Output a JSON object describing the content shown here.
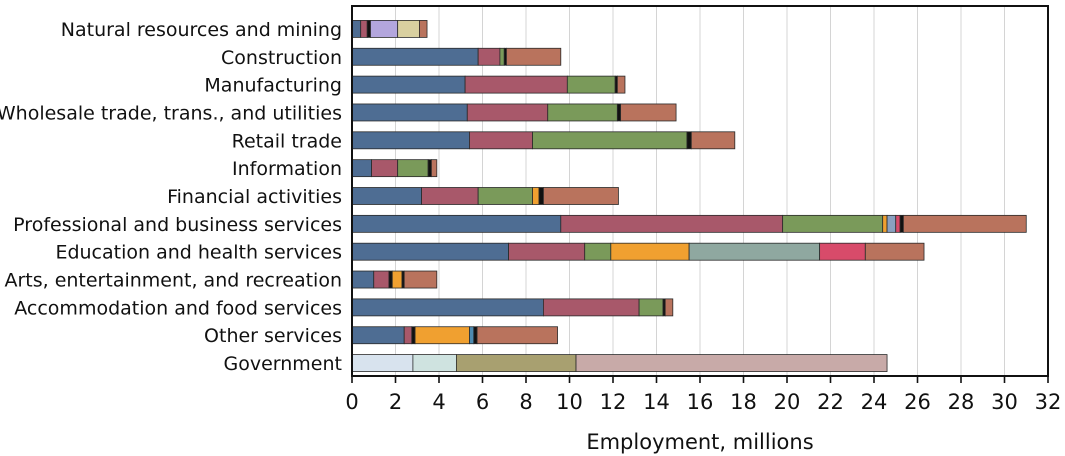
{
  "chart_data": {
    "type": "bar",
    "orientation": "horizontal",
    "stacked": true,
    "xlabel": "Employment, millions",
    "xlim": [
      0,
      32
    ],
    "xticks": [
      0,
      2,
      4,
      6,
      8,
      10,
      12,
      14,
      16,
      18,
      20,
      22,
      24,
      26,
      28,
      30,
      32
    ],
    "grid": true,
    "categories": [
      "Natural resources and mining",
      "Construction",
      "Manufacturing",
      "Wholesale trade, trans., and utilities",
      "Retail trade",
      "Information",
      "Financial activities",
      "Professional and business services",
      "Education and health services",
      "Arts, entertainment, and recreation",
      "Accommodation and food services",
      "Other services",
      "Government"
    ],
    "segments": [
      [
        {
          "v": 0.4,
          "c": "#4e6d93"
        },
        {
          "v": 0.3,
          "c": "#a8586a"
        },
        {
          "v": 0.15,
          "c": "#111111"
        },
        {
          "v": 1.25,
          "c": "#b3a6dd"
        },
        {
          "v": 1.0,
          "c": "#d9d0a0"
        },
        {
          "v": 0.35,
          "c": "#b9735d"
        }
      ],
      [
        {
          "v": 5.8,
          "c": "#4e6d93"
        },
        {
          "v": 1.0,
          "c": "#a8586a"
        },
        {
          "v": 0.2,
          "c": "#7a9a5a"
        },
        {
          "v": 0.1,
          "c": "#111111"
        },
        {
          "v": 2.5,
          "c": "#b9735d"
        }
      ],
      [
        {
          "v": 5.2,
          "c": "#4e6d93"
        },
        {
          "v": 4.7,
          "c": "#a8586a"
        },
        {
          "v": 2.2,
          "c": "#7a9a5a"
        },
        {
          "v": 0.1,
          "c": "#111111"
        },
        {
          "v": 0.35,
          "c": "#b9735d"
        }
      ],
      [
        {
          "v": 5.3,
          "c": "#4e6d93"
        },
        {
          "v": 3.7,
          "c": "#a8586a"
        },
        {
          "v": 3.2,
          "c": "#7a9a5a"
        },
        {
          "v": 0.15,
          "c": "#111111"
        },
        {
          "v": 2.55,
          "c": "#b9735d"
        }
      ],
      [
        {
          "v": 5.4,
          "c": "#4e6d93"
        },
        {
          "v": 2.9,
          "c": "#a8586a"
        },
        {
          "v": 7.1,
          "c": "#7a9a5a"
        },
        {
          "v": 0.2,
          "c": "#111111"
        },
        {
          "v": 2.0,
          "c": "#b9735d"
        }
      ],
      [
        {
          "v": 0.9,
          "c": "#4e6d93"
        },
        {
          "v": 1.2,
          "c": "#a8586a"
        },
        {
          "v": 1.4,
          "c": "#7a9a5a"
        },
        {
          "v": 0.15,
          "c": "#111111"
        },
        {
          "v": 0.25,
          "c": "#b9735d"
        }
      ],
      [
        {
          "v": 3.2,
          "c": "#4e6d93"
        },
        {
          "v": 2.6,
          "c": "#a8586a"
        },
        {
          "v": 2.5,
          "c": "#7a9a5a"
        },
        {
          "v": 0.3,
          "c": "#f0a030"
        },
        {
          "v": 0.2,
          "c": "#111111"
        },
        {
          "v": 3.45,
          "c": "#b9735d"
        }
      ],
      [
        {
          "v": 9.6,
          "c": "#4e6d93"
        },
        {
          "v": 10.2,
          "c": "#a8586a"
        },
        {
          "v": 4.6,
          "c": "#7a9a5a"
        },
        {
          "v": 0.2,
          "c": "#f0a030"
        },
        {
          "v": 0.4,
          "c": "#8aa0c0"
        },
        {
          "v": 0.2,
          "c": "#d84b6a"
        },
        {
          "v": 0.15,
          "c": "#111111"
        },
        {
          "v": 5.65,
          "c": "#b9735d"
        }
      ],
      [
        {
          "v": 7.2,
          "c": "#4e6d93"
        },
        {
          "v": 3.5,
          "c": "#a8586a"
        },
        {
          "v": 1.2,
          "c": "#7a9a5a"
        },
        {
          "v": 3.6,
          "c": "#f0a030"
        },
        {
          "v": 6.0,
          "c": "#8fa8a0"
        },
        {
          "v": 2.1,
          "c": "#d84b6a"
        },
        {
          "v": 2.7,
          "c": "#b9735d"
        }
      ],
      [
        {
          "v": 1.0,
          "c": "#4e6d93"
        },
        {
          "v": 0.7,
          "c": "#a8586a"
        },
        {
          "v": 0.15,
          "c": "#111111"
        },
        {
          "v": 0.45,
          "c": "#f0a030"
        },
        {
          "v": 0.1,
          "c": "#111111"
        },
        {
          "v": 1.5,
          "c": "#b9735d"
        }
      ],
      [
        {
          "v": 8.8,
          "c": "#4e6d93"
        },
        {
          "v": 4.4,
          "c": "#a8586a"
        },
        {
          "v": 1.1,
          "c": "#7a9a5a"
        },
        {
          "v": 0.1,
          "c": "#111111"
        },
        {
          "v": 0.35,
          "c": "#b9735d"
        }
      ],
      [
        {
          "v": 2.4,
          "c": "#4e6d93"
        },
        {
          "v": 0.35,
          "c": "#a8586a"
        },
        {
          "v": 0.15,
          "c": "#111111"
        },
        {
          "v": 2.5,
          "c": "#f0a030"
        },
        {
          "v": 0.2,
          "c": "#4e8ab0"
        },
        {
          "v": 0.15,
          "c": "#111111"
        },
        {
          "v": 3.7,
          "c": "#b9735d"
        }
      ],
      [
        {
          "v": 2.8,
          "c": "#d8e3ee"
        },
        {
          "v": 2.0,
          "c": "#cfe3e0"
        },
        {
          "v": 5.5,
          "c": "#a8a070"
        },
        {
          "v": 14.3,
          "c": "#c8aaa8"
        }
      ]
    ]
  }
}
